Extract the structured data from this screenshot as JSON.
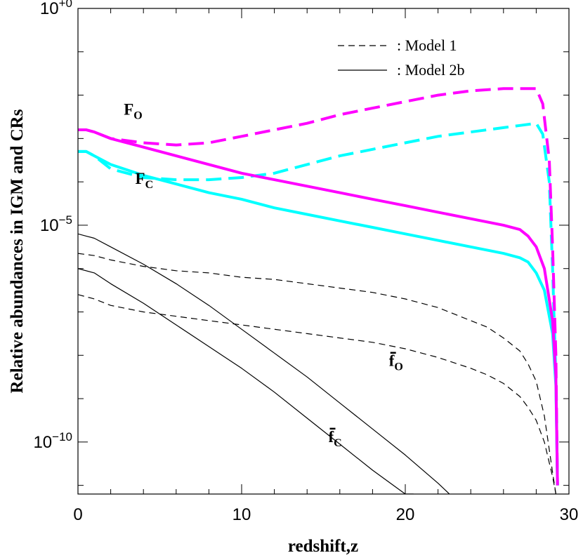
{
  "chart_data": {
    "type": "line",
    "xlabel": "redshift,z",
    "ylabel": "Relative abundances in IGM and CRs",
    "xlim": [
      0,
      30
    ],
    "ylim_log10": [
      -11.2,
      0
    ],
    "y_scale": "log",
    "x_ticks": [
      {
        "value": 0,
        "label": "0"
      },
      {
        "value": 10,
        "label": "10"
      },
      {
        "value": 20,
        "label": "20"
      },
      {
        "value": 30,
        "label": "30"
      }
    ],
    "y_ticks": [
      {
        "exp": 0,
        "base": "10",
        "sup": "+0"
      },
      {
        "exp": -5,
        "base": "10",
        "sup": "−5"
      },
      {
        "exp": -10,
        "base": "10",
        "sup": "−10"
      }
    ],
    "legend": [
      {
        "style": "dashed",
        "label": ": Model 1"
      },
      {
        "style": "solid",
        "label": ": Model 2b"
      }
    ],
    "legend_position": "top-right",
    "annotations": [
      {
        "main": "F",
        "sub": "O",
        "bar": false,
        "x": 2.8,
        "ylog": -2.45
      },
      {
        "main": "F",
        "sub": "C",
        "bar": false,
        "x": 3.5,
        "ylog": -4.05
      },
      {
        "main": "f",
        "sub": "O",
        "bar": true,
        "x": 19.0,
        "ylog": -8.25
      },
      {
        "main": "f",
        "sub": "C",
        "bar": true,
        "x": 15.3,
        "ylog": -10.0
      }
    ],
    "series": [
      {
        "key": "FO_model2b",
        "color": "#ff00ff",
        "dash": "solid",
        "width": 4,
        "x": [
          0,
          0.5,
          1,
          2,
          4,
          6,
          8,
          10,
          12,
          14,
          16,
          18,
          20,
          22,
          24,
          26,
          27,
          27.5,
          28,
          28.5,
          29,
          29.2,
          29.3
        ],
        "ylog": [
          -2.8,
          -2.8,
          -2.85,
          -3.0,
          -3.2,
          -3.4,
          -3.6,
          -3.8,
          -3.95,
          -4.1,
          -4.25,
          -4.4,
          -4.55,
          -4.7,
          -4.85,
          -5.0,
          -5.1,
          -5.25,
          -5.5,
          -6.0,
          -7.2,
          -8.5,
          -11.0
        ]
      },
      {
        "key": "FC_model2b",
        "color": "#00ffff",
        "dash": "solid",
        "width": 4,
        "x": [
          0,
          0.5,
          1,
          2,
          4,
          6,
          8,
          10,
          12,
          14,
          16,
          18,
          20,
          22,
          24,
          26,
          27,
          27.5,
          28,
          28.5,
          29,
          29.2,
          29.3
        ],
        "ylog": [
          -3.3,
          -3.3,
          -3.4,
          -3.6,
          -3.85,
          -4.05,
          -4.25,
          -4.4,
          -4.6,
          -4.75,
          -4.9,
          -5.05,
          -5.2,
          -5.35,
          -5.5,
          -5.65,
          -5.75,
          -5.85,
          -6.1,
          -6.5,
          -7.5,
          -8.7,
          -11.0
        ]
      },
      {
        "key": "FO_model1",
        "color": "#ff00ff",
        "dash": "dashed",
        "width": 4,
        "x": [
          0,
          0.5,
          1,
          2,
          4,
          6,
          8,
          10,
          12,
          14,
          16,
          18,
          20,
          22,
          24,
          26,
          27,
          28,
          28.4,
          28.8,
          29.0,
          29.2,
          29.3
        ],
        "ylog": [
          -2.8,
          -2.8,
          -2.85,
          -3.0,
          -3.1,
          -3.15,
          -3.1,
          -2.95,
          -2.8,
          -2.65,
          -2.45,
          -2.3,
          -2.15,
          -2.0,
          -1.9,
          -1.85,
          -1.85,
          -1.85,
          -2.2,
          -3.5,
          -5.5,
          -8.0,
          -11.0
        ]
      },
      {
        "key": "FC_model1",
        "color": "#00ffff",
        "dash": "dashed",
        "width": 4,
        "x": [
          0,
          0.5,
          1,
          2,
          4,
          6,
          8,
          10,
          12,
          14,
          16,
          18,
          20,
          22,
          24,
          26,
          27,
          28,
          28.4,
          28.8,
          29.0,
          29.2,
          29.3
        ],
        "ylog": [
          -3.3,
          -3.3,
          -3.4,
          -3.7,
          -3.9,
          -3.95,
          -3.95,
          -3.9,
          -3.8,
          -3.6,
          -3.4,
          -3.25,
          -3.1,
          -2.95,
          -2.85,
          -2.75,
          -2.7,
          -2.65,
          -2.9,
          -4.0,
          -6.0,
          -8.5,
          -11.0
        ]
      },
      {
        "key": "fO_model1",
        "color": "#000000",
        "dash": "dashed",
        "width": 1.2,
        "x": [
          0,
          1,
          2,
          4,
          6,
          8,
          10,
          12,
          14,
          16,
          18,
          20,
          22,
          24,
          25,
          26,
          27,
          27.5,
          28,
          28.5,
          29,
          29.2
        ],
        "ylog": [
          -5.65,
          -5.7,
          -5.8,
          -5.95,
          -6.05,
          -6.1,
          -6.2,
          -6.25,
          -6.35,
          -6.45,
          -6.55,
          -6.7,
          -6.9,
          -7.2,
          -7.35,
          -7.6,
          -7.9,
          -8.2,
          -8.6,
          -9.4,
          -10.7,
          -11.2
        ]
      },
      {
        "key": "fC_model1",
        "color": "#000000",
        "dash": "dashed",
        "width": 1.2,
        "x": [
          0,
          1,
          2,
          4,
          6,
          8,
          10,
          12,
          14,
          16,
          18,
          20,
          22,
          24,
          25,
          26,
          27,
          27.5,
          28,
          28.5,
          29,
          29.2
        ],
        "ylog": [
          -6.6,
          -6.7,
          -6.85,
          -7.0,
          -7.1,
          -7.2,
          -7.3,
          -7.4,
          -7.5,
          -7.6,
          -7.7,
          -7.85,
          -8.05,
          -8.3,
          -8.45,
          -8.65,
          -8.95,
          -9.2,
          -9.5,
          -10.0,
          -10.8,
          -11.2
        ]
      },
      {
        "key": "fO_model2b",
        "color": "#000000",
        "dash": "solid",
        "width": 1.2,
        "x": [
          0,
          1,
          2,
          4,
          6,
          8,
          10,
          12,
          14,
          16,
          18,
          20,
          22,
          22.7
        ],
        "ylog": [
          -5.2,
          -5.3,
          -5.5,
          -5.9,
          -6.35,
          -6.85,
          -7.4,
          -7.95,
          -8.5,
          -9.1,
          -9.7,
          -10.3,
          -10.95,
          -11.2
        ]
      },
      {
        "key": "fC_model2b",
        "color": "#000000",
        "dash": "solid",
        "width": 1.2,
        "x": [
          0,
          1,
          2,
          4,
          6,
          8,
          10,
          12,
          14,
          16,
          18,
          20,
          20.5
        ],
        "ylog": [
          -6.0,
          -6.1,
          -6.35,
          -6.8,
          -7.3,
          -7.8,
          -8.3,
          -8.85,
          -9.45,
          -10.05,
          -10.65,
          -11.2,
          -11.2
        ]
      }
    ]
  }
}
